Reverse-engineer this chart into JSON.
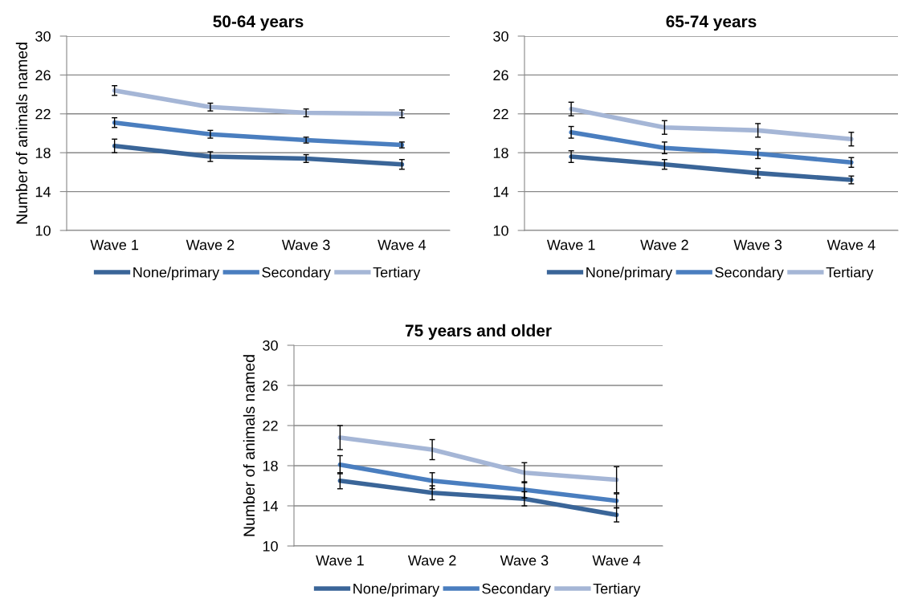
{
  "chart_data": [
    {
      "type": "line",
      "title": "50-64 years",
      "ylabel": "Number of animals named",
      "categories": [
        "Wave 1",
        "Wave 2",
        "Wave 3",
        "Wave 4"
      ],
      "ylim": [
        10,
        30
      ],
      "yticks": [
        10,
        14,
        18,
        22,
        26,
        30
      ],
      "grid": "y",
      "legend": "bottom",
      "marker": "none",
      "line_style": "solid",
      "series": [
        {
          "name": "None/primary",
          "color": "#3a6598",
          "values": [
            18.7,
            17.6,
            17.4,
            16.8
          ],
          "errors": [
            0.7,
            0.5,
            0.4,
            0.5
          ]
        },
        {
          "name": "Secondary",
          "color": "#4a7ebf",
          "values": [
            21.1,
            19.9,
            19.3,
            18.8
          ],
          "errors": [
            0.5,
            0.4,
            0.3,
            0.3
          ]
        },
        {
          "name": "Tertiary",
          "color": "#a5b6d6",
          "values": [
            24.4,
            22.7,
            22.1,
            22.0
          ],
          "errors": [
            0.5,
            0.4,
            0.4,
            0.4
          ]
        }
      ]
    },
    {
      "type": "line",
      "title": "65-74 years",
      "categories": [
        "Wave 1",
        "Wave 2",
        "Wave 3",
        "Wave 4"
      ],
      "ylim": [
        10,
        30
      ],
      "yticks": [
        10,
        14,
        18,
        22,
        26,
        30
      ],
      "grid": "y",
      "legend": "bottom",
      "marker": "none",
      "line_style": "solid",
      "series": [
        {
          "name": "None/primary",
          "color": "#3a6598",
          "values": [
            17.6,
            16.8,
            15.9,
            15.2
          ],
          "errors": [
            0.6,
            0.5,
            0.5,
            0.4
          ]
        },
        {
          "name": "Secondary",
          "color": "#4a7ebf",
          "values": [
            20.1,
            18.5,
            17.9,
            17.0
          ],
          "errors": [
            0.6,
            0.6,
            0.5,
            0.5
          ]
        },
        {
          "name": "Tertiary",
          "color": "#a5b6d6",
          "values": [
            22.5,
            20.6,
            20.3,
            19.4
          ],
          "errors": [
            0.7,
            0.7,
            0.7,
            0.7
          ]
        }
      ]
    },
    {
      "type": "line",
      "title": "75 years and older",
      "ylabel": "Number of animals named",
      "categories": [
        "Wave 1",
        "Wave 2",
        "Wave 3",
        "Wave 4"
      ],
      "ylim": [
        10,
        30
      ],
      "yticks": [
        10,
        14,
        18,
        22,
        26,
        30
      ],
      "grid": "y",
      "legend": "bottom",
      "marker": "none",
      "line_style": "solid",
      "series": [
        {
          "name": "None/primary",
          "color": "#3a6598",
          "values": [
            16.5,
            15.3,
            14.7,
            13.1
          ],
          "errors": [
            0.8,
            0.7,
            0.7,
            0.7
          ]
        },
        {
          "name": "Secondary",
          "color": "#4a7ebf",
          "values": [
            18.1,
            16.5,
            15.6,
            14.5
          ],
          "errors": [
            0.9,
            0.8,
            0.8,
            0.7
          ]
        },
        {
          "name": "Tertiary",
          "color": "#a5b6d6",
          "values": [
            20.8,
            19.6,
            17.3,
            16.6
          ],
          "errors": [
            1.2,
            1.0,
            1.0,
            1.3
          ]
        }
      ]
    }
  ]
}
